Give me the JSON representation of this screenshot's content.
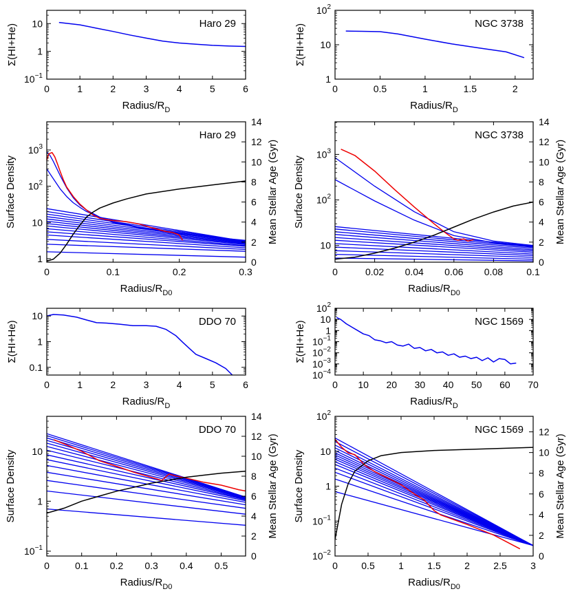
{
  "colors": {
    "hi": "#0000ee",
    "model": "#0000ee",
    "observed": "#ee0000",
    "age": "#000000"
  },
  "charts": [
    {
      "id": "haro29-hi",
      "type": "line",
      "label": "Haro 29",
      "xlabel": "Radius/R",
      "xsub": "D",
      "ylabel": "Σ(HI+He)",
      "xlim": [
        0,
        6
      ],
      "ylog": true,
      "ylim": [
        0.1,
        30
      ],
      "xticks": [
        0,
        1,
        2,
        3,
        4,
        5,
        6
      ],
      "xticklabels": [
        "0",
        "1",
        "2",
        "3",
        "4",
        "5",
        "6"
      ],
      "yticks": [
        0.1,
        1,
        10
      ],
      "yticklabels": [
        {
          "m": "10",
          "e": "−1"
        },
        "1",
        "10"
      ],
      "series": [
        {
          "x": [
            0.37,
            1,
            1.5,
            2,
            2.5,
            3,
            3.5,
            4,
            4.5,
            5,
            5.5,
            6
          ],
          "y": [
            11,
            9,
            6.8,
            5.2,
            3.9,
            3,
            2.35,
            2.0,
            1.8,
            1.65,
            1.55,
            1.5
          ]
        }
      ]
    },
    {
      "id": "ngc3738-hi",
      "type": "line",
      "label": "NGC 3738",
      "xlabel": "Radius/R",
      "xsub": "D",
      "ylabel": "Σ(HI+He)",
      "xlim": [
        0,
        2.2
      ],
      "ylog": true,
      "ylim": [
        1,
        100
      ],
      "xticks": [
        0,
        0.5,
        1,
        1.5,
        2
      ],
      "xticklabels": [
        "0",
        "0.5",
        "1",
        "1.5",
        "2"
      ],
      "yticks": [
        1,
        10,
        100
      ],
      "yticklabels": [
        "1",
        "10",
        {
          "m": "10",
          "e": "2"
        }
      ],
      "series": [
        {
          "x": [
            0.12,
            0.3,
            0.5,
            0.7,
            1,
            1.3,
            1.6,
            1.9,
            2.1
          ],
          "y": [
            25,
            24.5,
            24,
            20.5,
            14.5,
            10.5,
            8,
            6.2,
            4.2
          ]
        }
      ]
    },
    {
      "id": "haro29-sd",
      "type": "line",
      "label": "Haro 29",
      "xlabel": "Radius/R",
      "xsub": "D0",
      "ylabel": "Surface Density",
      "y2label": "Mean Stellar Age (Gyr)",
      "xlim": [
        0,
        0.3
      ],
      "ylog": true,
      "ylim": [
        0.8,
        6000
      ],
      "y2lim": [
        0,
        14
      ],
      "xticks": [
        0,
        0.1,
        0.2,
        0.3
      ],
      "xticklabels": [
        "0",
        "0.1",
        "0.2",
        "0.3"
      ],
      "yticks": [
        1,
        10,
        100,
        1000
      ],
      "yticklabels": [
        "1",
        "10",
        {
          "m": "10",
          "e": "2"
        },
        {
          "m": "10",
          "e": "3"
        }
      ],
      "y2ticks": [
        0,
        2,
        4,
        6,
        8,
        10,
        12,
        14
      ],
      "y2ticklabels": [
        "0",
        "2",
        "4",
        "6",
        "8",
        "10",
        "12",
        "14"
      ],
      "model_x": [
        0,
        0.3
      ],
      "models": [
        [
          1.55,
          1.1
        ],
        [
          2.5,
          1.6
        ],
        [
          3.4,
          1.8
        ],
        [
          4.5,
          2.0
        ],
        [
          5.5,
          2.2
        ],
        [
          6.7,
          2.3
        ],
        [
          8,
          2.45
        ],
        [
          9.3,
          2.55
        ],
        [
          10.8,
          2.65
        ],
        [
          12.5,
          2.75
        ],
        [
          14.5,
          2.85
        ],
        [
          17,
          2.9
        ],
        [
          20,
          2.95
        ],
        [
          24,
          3.0
        ]
      ],
      "curves": [
        {
          "x": [
            0,
            0.005,
            0.01,
            0.02,
            0.03,
            0.04,
            0.05,
            0.06,
            0.08,
            0.1,
            0.15,
            0.2,
            0.25,
            0.3
          ],
          "y": [
            880,
            700,
            480,
            200,
            90,
            48,
            30,
            22,
            14,
            10,
            6.5,
            4.8,
            3.8,
            3.1
          ]
        },
        {
          "x": [
            0,
            0.01,
            0.02,
            0.03,
            0.04,
            0.05,
            0.06,
            0.08,
            0.1,
            0.15,
            0.2,
            0.25,
            0.3
          ],
          "y": [
            300,
            160,
            85,
            52,
            35,
            26,
            20,
            14,
            10.5,
            6.8,
            5,
            3.9,
            3.2
          ]
        }
      ],
      "observed": {
        "x": [
          0,
          0.003,
          0.008,
          0.012,
          0.016,
          0.02,
          0.025,
          0.03,
          0.04,
          0.05,
          0.06,
          0.07,
          0.08,
          0.09,
          0.1,
          0.12,
          0.14,
          0.16,
          0.18,
          0.19,
          0.2,
          0.205
        ],
        "y": [
          520,
          780,
          850,
          650,
          420,
          260,
          150,
          95,
          52,
          32,
          22,
          16,
          13,
          12,
          11.3,
          10.5,
          9,
          7,
          5.6,
          5.3,
          4.5,
          3.2
        ]
      },
      "age": {
        "x": [
          0,
          0.01,
          0.02,
          0.03,
          0.04,
          0.05,
          0.06,
          0.07,
          0.08,
          0.1,
          0.12,
          0.15,
          0.2,
          0.25,
          0.3
        ],
        "y": [
          0.1,
          0.3,
          0.9,
          1.8,
          2.8,
          3.7,
          4.5,
          5.0,
          5.4,
          5.9,
          6.3,
          6.8,
          7.3,
          7.7,
          8.1
        ]
      }
    },
    {
      "id": "ngc3738-sd",
      "type": "line",
      "label": "NGC 3738",
      "xlabel": "Radius/R",
      "xsub": "D0",
      "ylabel": "Surface Density",
      "y2label": "Mean Stellar Age (Gyr)",
      "xlim": [
        0,
        0.1
      ],
      "ylog": true,
      "ylim": [
        4.3,
        5200
      ],
      "y2lim": [
        0,
        14
      ],
      "xticks": [
        0,
        0.02,
        0.04,
        0.06,
        0.08,
        0.1
      ],
      "xticklabels": [
        "0",
        "0.02",
        "0.04",
        "0.06",
        "0.08",
        "0.1"
      ],
      "yticks": [
        10,
        100,
        1000
      ],
      "yticklabels": [
        "10",
        {
          "m": "10",
          "e": "2"
        },
        {
          "m": "10",
          "e": "3"
        }
      ],
      "y2ticks": [
        0,
        2,
        4,
        6,
        8,
        10,
        12,
        14
      ],
      "y2ticklabels": [
        "0",
        "2",
        "4",
        "6",
        "8",
        "10",
        "12",
        "14"
      ],
      "model_x": [
        0,
        0.1
      ],
      "models": [
        [
          5.3,
          4.6
        ],
        [
          6.4,
          5.0
        ],
        [
          7.7,
          5.5
        ],
        [
          9.2,
          6.0
        ],
        [
          11,
          6.5
        ],
        [
          13,
          7.1
        ],
        [
          15,
          7.6
        ],
        [
          17.5,
          8.1
        ],
        [
          20,
          8.7
        ],
        [
          23,
          9.2
        ],
        [
          26,
          9.7
        ]
      ],
      "curves": [
        {
          "x": [
            0,
            0.02,
            0.04,
            0.06,
            0.08,
            0.1
          ],
          "y": [
            850,
            200,
            55,
            20,
            12.5,
            10
          ]
        },
        {
          "x": [
            0,
            0.02,
            0.04,
            0.06,
            0.08,
            0.1
          ],
          "y": [
            280,
            95,
            36,
            16.5,
            11.5,
            9.5
          ]
        }
      ],
      "observed": {
        "x": [
          0.003,
          0.01,
          0.02,
          0.03,
          0.04,
          0.05,
          0.055,
          0.06,
          0.062,
          0.065,
          0.067,
          0.07
        ],
        "y": [
          1300,
          950,
          430,
          170,
          70,
          30,
          20,
          14,
          13,
          14,
          12.5,
          13.5
        ]
      },
      "age": {
        "x": [
          0,
          0.01,
          0.02,
          0.03,
          0.04,
          0.05,
          0.06,
          0.07,
          0.08,
          0.09,
          0.1
        ],
        "y": [
          0.3,
          0.5,
          0.9,
          1.4,
          2.0,
          2.7,
          3.5,
          4.3,
          5.0,
          5.6,
          6.0
        ]
      }
    },
    {
      "id": "ddo70-hi",
      "type": "line",
      "label": "DDO 70",
      "xlabel": "Radius/R",
      "xsub": "D",
      "ylabel": "Σ(HI+He)",
      "xlim": [
        0,
        6
      ],
      "ylog": true,
      "ylim": [
        0.05,
        20
      ],
      "xticks": [
        0,
        1,
        2,
        3,
        4,
        5,
        6
      ],
      "xticklabels": [
        "0",
        "1",
        "2",
        "3",
        "4",
        "5",
        "6"
      ],
      "yticks": [
        0.1,
        1,
        10
      ],
      "yticklabels": [
        "0.1",
        "1",
        "10"
      ],
      "series": [
        {
          "x": [
            0,
            0.2,
            0.5,
            0.9,
            1.2,
            1.5,
            1.8,
            2.2,
            2.6,
            3.0,
            3.3,
            3.6,
            3.9,
            4.1,
            4.3,
            4.5,
            4.8,
            5.1,
            5.4,
            5.6
          ],
          "y": [
            10,
            11.5,
            11,
            9,
            7,
            5.5,
            5.3,
            4.8,
            4.2,
            4.2,
            4.0,
            3.0,
            1.7,
            0.95,
            0.55,
            0.32,
            0.22,
            0.15,
            0.09,
            0.05
          ]
        }
      ]
    },
    {
      "id": "ngc1569-hi",
      "type": "line",
      "label": "NGC 1569",
      "xlabel": "Radius/R",
      "xsub": "D",
      "ylabel": "Σ(HI+He)",
      "xlim": [
        0,
        70
      ],
      "ylog": true,
      "ylim": [
        0.0001,
        100
      ],
      "xticks": [
        0,
        10,
        20,
        30,
        40,
        50,
        60,
        70
      ],
      "xticklabels": [
        "0",
        "10",
        "20",
        "30",
        "40",
        "50",
        "60",
        "70"
      ],
      "yticks": [
        0.0001,
        0.001,
        0.01,
        0.1,
        1,
        10,
        100
      ],
      "yticklabels": [
        {
          "m": "10",
          "e": "−4"
        },
        {
          "m": "10",
          "e": "−3"
        },
        {
          "m": "10",
          "e": "−2"
        },
        {
          "m": "10",
          "e": "−1"
        },
        "1",
        "10",
        {
          "m": "10",
          "e": "2"
        }
      ],
      "series": [
        {
          "x": [
            0.5,
            2,
            4,
            6,
            8,
            10,
            12,
            14,
            16,
            18,
            20,
            22,
            24,
            26,
            28,
            30,
            32,
            34,
            36,
            38,
            40,
            42,
            44,
            46,
            48,
            50,
            52,
            54,
            56,
            58,
            60,
            62,
            64
          ],
          "y": [
            15,
            10,
            4,
            2,
            1,
            0.5,
            0.35,
            0.15,
            0.12,
            0.08,
            0.1,
            0.05,
            0.04,
            0.06,
            0.025,
            0.03,
            0.015,
            0.02,
            0.01,
            0.012,
            0.006,
            0.008,
            0.004,
            0.005,
            0.003,
            0.004,
            0.002,
            0.0035,
            0.0015,
            0.003,
            0.0025,
            0.001,
            0.0012
          ]
        }
      ]
    },
    {
      "id": "ddo70-sd",
      "type": "line",
      "label": "DDO 70",
      "xlabel": "Radius/R",
      "xsub": "D0",
      "ylabel": "Surface Density",
      "y2label": "Mean Stellar Age (Gyr)",
      "xlim": [
        0,
        0.57
      ],
      "ylog": true,
      "ylim": [
        0.08,
        50
      ],
      "y2lim": [
        0,
        14
      ],
      "xticks": [
        0,
        0.1,
        0.2,
        0.3,
        0.4,
        0.5
      ],
      "xticklabels": [
        "0",
        "0.1",
        "0.2",
        "0.3",
        "0.4",
        "0.5"
      ],
      "yticks": [
        0.1,
        1,
        10
      ],
      "yticklabels": [
        {
          "m": "10",
          "e": "−1"
        },
        "1",
        "10"
      ],
      "y2ticks": [
        0,
        2,
        4,
        6,
        8,
        10,
        12,
        14
      ],
      "y2ticklabels": [
        "0",
        "2",
        "4",
        "6",
        "8",
        "10",
        "12",
        "14"
      ],
      "model_x": [
        0,
        0.57
      ],
      "models": [
        [
          0.7,
          0.33
        ],
        [
          1.6,
          0.55
        ],
        [
          2.6,
          0.72
        ],
        [
          3.8,
          0.85
        ],
        [
          5.2,
          0.95
        ],
        [
          6.8,
          1.02
        ],
        [
          8.5,
          1.07
        ],
        [
          10.5,
          1.1
        ],
        [
          12.5,
          1.13
        ],
        [
          14.5,
          1.15
        ],
        [
          16.5,
          1.17
        ],
        [
          18.5,
          1.19
        ],
        [
          20.5,
          1.2
        ],
        [
          22.5,
          1.21
        ]
      ],
      "curves": [],
      "observed": {
        "x": [
          0.02,
          0.05,
          0.1,
          0.15,
          0.2,
          0.25,
          0.3,
          0.33,
          0.35,
          0.37,
          0.4,
          0.45,
          0.5,
          0.55,
          0.57
        ],
        "y": [
          17,
          14,
          10,
          6.5,
          5,
          3.8,
          3,
          2.6,
          3.5,
          3.2,
          2.9,
          2.4,
          2.1,
          1.7,
          1.6
        ]
      },
      "age": {
        "x": [
          0,
          0.05,
          0.1,
          0.15,
          0.2,
          0.25,
          0.3,
          0.35,
          0.4,
          0.45,
          0.5,
          0.57
        ],
        "y": [
          4.3,
          4.8,
          5.5,
          6.0,
          6.5,
          6.9,
          7.3,
          7.6,
          7.9,
          8.1,
          8.3,
          8.5
        ]
      }
    },
    {
      "id": "ngc1569-sd",
      "type": "line",
      "label": "NGC 1569",
      "xlabel": "Radius/R",
      "xsub": "D0",
      "ylabel": "Surface Density",
      "y2label": "Mean Stellar Age (Gyr)",
      "xlim": [
        0,
        3
      ],
      "ylog": true,
      "ylim": [
        0.01,
        100
      ],
      "y2lim": [
        0,
        13.5
      ],
      "xticks": [
        0,
        0.5,
        1,
        1.5,
        2,
        2.5,
        3
      ],
      "xticklabels": [
        "0",
        "0.5",
        "1",
        "1.5",
        "2",
        "2.5",
        "3"
      ],
      "yticks": [
        0.01,
        0.1,
        1,
        10,
        100
      ],
      "yticklabels": [
        {
          "m": "10",
          "e": "−2"
        },
        {
          "m": "10",
          "e": "−1"
        },
        "1",
        "10",
        {
          "m": "10",
          "e": "2"
        }
      ],
      "y2ticks": [
        0,
        2,
        4,
        6,
        8,
        10,
        12
      ],
      "y2ticklabels": [
        "0",
        "2",
        "4",
        "6",
        "8",
        "10",
        "12"
      ],
      "model_x": [
        0,
        3
      ],
      "models": [
        [
          0.7,
          0.02
        ],
        [
          1.6,
          0.02
        ],
        [
          2.5,
          0.02
        ],
        [
          3.3,
          0.02
        ],
        [
          4.2,
          0.02
        ],
        [
          5,
          0.02
        ],
        [
          5.9,
          0.02
        ],
        [
          6.8,
          0.02
        ],
        [
          7.8,
          0.02
        ],
        [
          9,
          0.02
        ],
        [
          10.5,
          0.02
        ],
        [
          12.5,
          0.02
        ],
        [
          15,
          0.02
        ],
        [
          19,
          0.02
        ],
        [
          24,
          0.02
        ]
      ],
      "curves": [],
      "observed": {
        "x": [
          0,
          0.1,
          0.2,
          0.3,
          0.45,
          0.6,
          0.8,
          1.0,
          1.2,
          1.35,
          1.5,
          1.6,
          2.0,
          2.4,
          2.8
        ],
        "y": [
          22,
          13,
          9,
          8,
          4,
          2.6,
          1.7,
          1.1,
          0.6,
          0.4,
          0.2,
          0.15,
          0.08,
          0.04,
          0.016
        ]
      },
      "age": {
        "x": [
          0,
          0.05,
          0.1,
          0.2,
          0.3,
          0.5,
          0.7,
          1.0,
          1.5,
          2.0,
          2.5,
          3.0
        ],
        "y": [
          1.6,
          3.3,
          5.0,
          7.0,
          8.2,
          9.2,
          9.7,
          10.0,
          10.2,
          10.3,
          10.4,
          10.5
        ]
      }
    }
  ]
}
